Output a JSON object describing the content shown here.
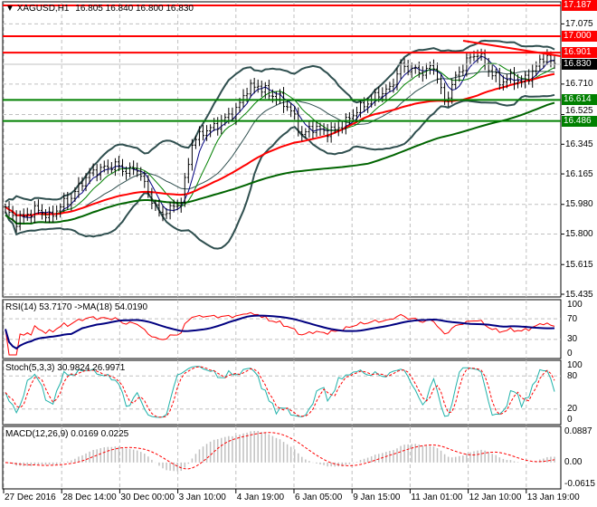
{
  "header": {
    "symbol": "XAGUSD,H1",
    "ohlc": "16.805 16.840 16.800 16.830"
  },
  "colors": {
    "resistance": "#ff0000",
    "support": "#008000",
    "current": "#000000",
    "bands": "#2f4f4f",
    "ma_fast": "#ff0000",
    "ma_slow": "#006400",
    "rsi": "#ff0000",
    "rsi_ma": "#000080",
    "stoch_main": "#20b2aa",
    "stoch_signal": "#ff0000",
    "macd_hist": "#c0c0c0",
    "macd_signal": "#ff0000"
  },
  "chart_data": {
    "type": "candlestick",
    "price_axis": {
      "min": 15.435,
      "max": 17.187,
      "ticks": [
        "17.075",
        "16.710",
        "16.525",
        "16.345",
        "16.165",
        "15.980",
        "15.800",
        "15.615",
        "15.435"
      ]
    },
    "levels": [
      {
        "value": "17.187",
        "kind": "resistance"
      },
      {
        "value": "17.000",
        "kind": "resistance"
      },
      {
        "value": "16.901",
        "kind": "resistance"
      },
      {
        "value": "16.830",
        "kind": "current"
      },
      {
        "value": "16.614",
        "kind": "support"
      },
      {
        "value": "16.486",
        "kind": "support"
      }
    ],
    "close_path": [
      15.95,
      15.88,
      15.92,
      15.95,
      15.9,
      15.97,
      16.02,
      16.12,
      16.18,
      16.2,
      16.22,
      16.18,
      16.2,
      16.05,
      15.92,
      15.95,
      16.0,
      16.35,
      16.42,
      16.45,
      16.5,
      16.55,
      16.68,
      16.7,
      16.65,
      16.62,
      16.55,
      16.4,
      16.45,
      16.42,
      16.43,
      16.48,
      16.55,
      16.6,
      16.65,
      16.68,
      16.82,
      16.8,
      16.78,
      16.82,
      16.6,
      16.75,
      16.85,
      16.9,
      16.8,
      16.72,
      16.75,
      16.72,
      16.78,
      16.88,
      16.83
    ],
    "x_ticks": [
      "27 Dec 2016",
      "28 Dec 14:00",
      "30 Dec 00:00",
      "3 Jan 10:00",
      "4 Jan 19:00",
      "6 Jan 05:00",
      "9 Jan 15:00",
      "11 Jan 01:00",
      "12 Jan 10:00",
      "13 Jan 19:00"
    ]
  },
  "rsi": {
    "title": "RSI(14) 53.7170  ->MA(18) 54.0190",
    "ticks": [
      "100",
      "70",
      "30",
      "0"
    ]
  },
  "stoch": {
    "title": "Stoch(5,3,3) 30.9824 26.9971",
    "ticks": [
      "100",
      "80",
      "20",
      "0"
    ]
  },
  "macd": {
    "title": "MACD(12,26,9) 0.0169 0.0225",
    "ticks": [
      "0.0887",
      "0.00",
      "-0.0615"
    ],
    "max": 0.0887,
    "min": -0.0615
  }
}
